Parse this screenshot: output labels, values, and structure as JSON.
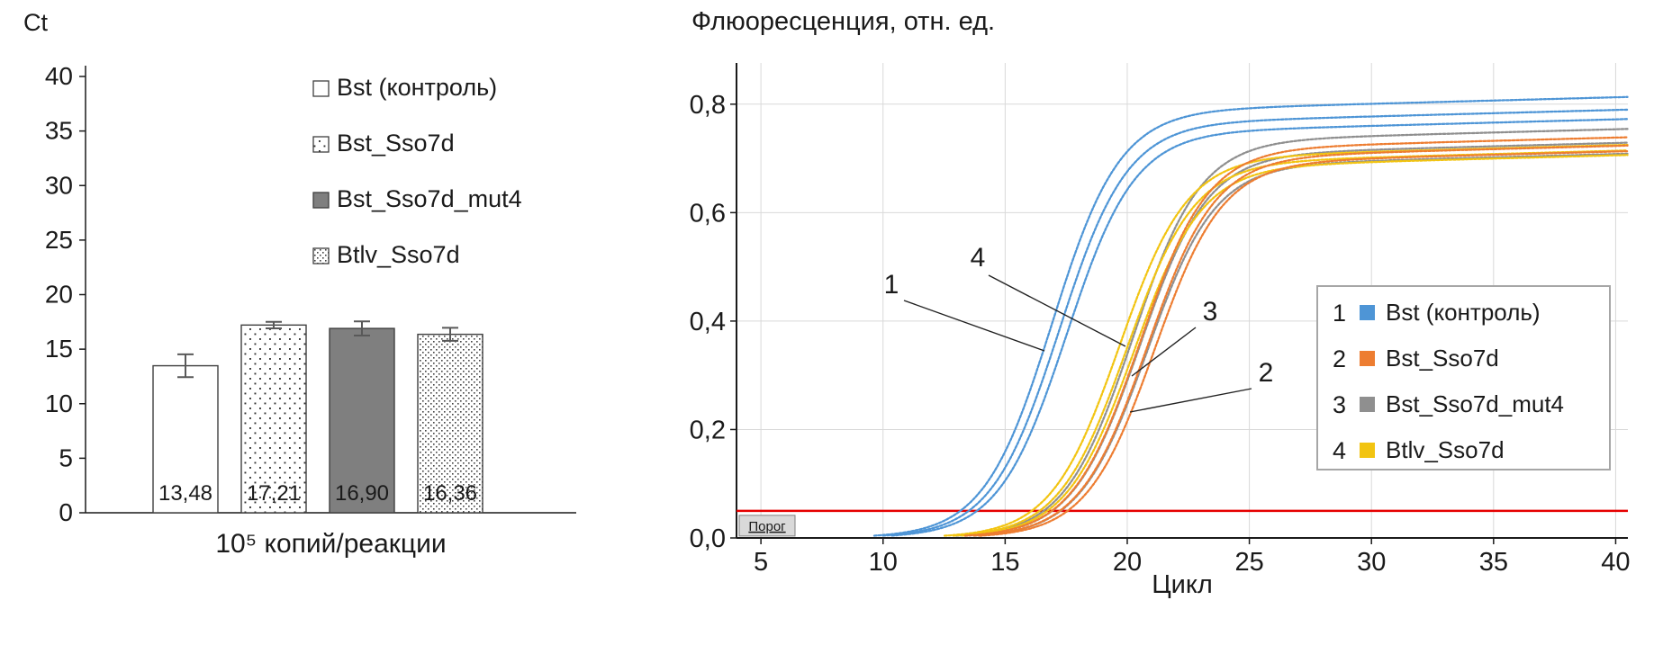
{
  "figure": {
    "left_y_title": "Ct",
    "left_x_label": "10⁵ копий/реакции",
    "right_title": "Флюоресценция, отн. ед.",
    "right_x_label": "Цикл"
  },
  "chart_data": [
    {
      "type": "bar",
      "title": "",
      "ylabel": "Ct",
      "xlabel": "10⁵ копий/реакции",
      "ylim": [
        0,
        40
      ],
      "yticks": [
        0,
        5,
        10,
        15,
        20,
        25,
        30,
        35,
        40
      ],
      "grid": false,
      "legend_position": "top-right-inside",
      "categories": [
        "Bst (контроль)",
        "Bst_Sso7d",
        "Bst_Sso7d_mut4",
        "Btlv_Sso7d"
      ],
      "values": [
        13.48,
        17.21,
        16.9,
        16.36
      ],
      "value_labels": [
        "13,48",
        "17,21",
        "16,90",
        "16,36"
      ],
      "errors": [
        1.05,
        0.3,
        0.65,
        0.6
      ],
      "bar_styles": [
        "white",
        "dots-sparse",
        "gray",
        "dots-dense"
      ],
      "bar_gray_fill": "#7f7f7f"
    },
    {
      "type": "line",
      "title": "Флюоресценция, отн. ед.",
      "xlabel": "Цикл",
      "ylabel": "Флюоресценция, отн. ед.",
      "xlim": [
        4,
        40.5
      ],
      "ylim": [
        0,
        0.876
      ],
      "xticks": [
        5,
        10,
        15,
        20,
        25,
        30,
        35,
        40
      ],
      "yticks": [
        0,
        0.2,
        0.4,
        0.6,
        0.8
      ],
      "ytick_labels": [
        "0,0",
        "0,2",
        "0,4",
        "0,6",
        "0,8"
      ],
      "grid": true,
      "legend_position": "right-inside",
      "threshold": {
        "value": 0.05,
        "label": "Порог",
        "color": "#e60000"
      },
      "sigmoid_k": 0.72,
      "plateau_drift": 0.0012,
      "series": [
        {
          "num": "1",
          "name": "Bst (контроль)",
          "color": "#4E95D6",
          "ct": 13.48,
          "replicates": [
            {
              "mid": 16.9,
              "plateau": 0.785
            },
            {
              "mid": 17.2,
              "plateau": 0.762
            },
            {
              "mid": 17.5,
              "plateau": 0.745
            }
          ]
        },
        {
          "num": "2",
          "name": "Bst_Sso7d",
          "color": "#ED7D31",
          "ct": 17.21,
          "replicates": [
            {
              "mid": 20.5,
              "plateau": 0.715
            },
            {
              "mid": 20.8,
              "plateau": 0.7
            },
            {
              "mid": 21.1,
              "plateau": 0.69
            }
          ]
        },
        {
          "num": "3",
          "name": "Bst_Sso7d_mut4",
          "color": "#8F8F8F",
          "ct": 16.9,
          "replicates": [
            {
              "mid": 20.2,
              "plateau": 0.73
            },
            {
              "mid": 20.5,
              "plateau": 0.705
            },
            {
              "mid": 20.8,
              "plateau": 0.685
            }
          ]
        },
        {
          "num": "4",
          "name": "Btlv_Sso7d",
          "color": "#F2C411",
          "ct": 16.36,
          "replicates": [
            {
              "mid": 19.65,
              "plateau": 0.7
            },
            {
              "mid": 19.95,
              "plateau": 0.69
            },
            {
              "mid": 20.25,
              "plateau": 0.682
            }
          ]
        }
      ],
      "curve_annotations": [
        "1",
        "4",
        "3",
        "2"
      ]
    }
  ]
}
